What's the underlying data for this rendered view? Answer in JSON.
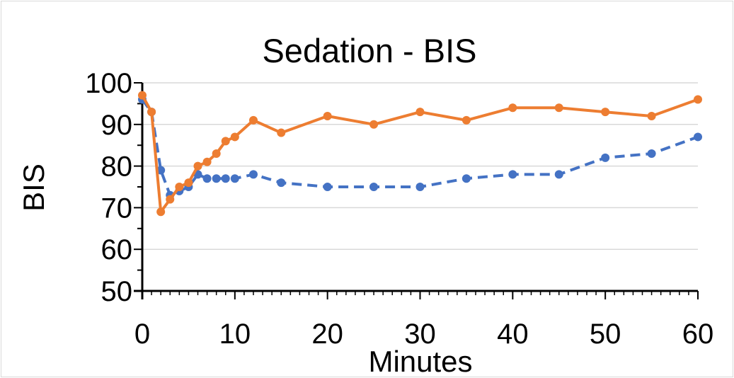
{
  "chart_data": {
    "type": "line",
    "title": "Sedation - BIS",
    "xlabel": "Minutes",
    "ylabel": "BIS",
    "xlim": [
      0,
      60
    ],
    "ylim": [
      50,
      100
    ],
    "x_ticks": [
      0,
      10,
      20,
      30,
      40,
      50,
      60
    ],
    "y_ticks": [
      50,
      60,
      70,
      80,
      90,
      100
    ],
    "grid": "horizontal",
    "legend": "none",
    "series": [
      {
        "color": "#4472C4",
        "line_style": "dashed",
        "x": [
          0,
          1,
          2,
          3,
          4,
          5,
          6,
          7,
          8,
          9,
          10,
          12,
          15,
          20,
          25,
          30,
          35,
          40,
          45,
          50,
          55,
          60
        ],
        "y": [
          96,
          93,
          79,
          73,
          74,
          75,
          78,
          77,
          77,
          77,
          77,
          78,
          76,
          75,
          75,
          75,
          77,
          78,
          78,
          82,
          83,
          87
        ]
      },
      {
        "color": "#ED7D31",
        "line_style": "solid",
        "x": [
          0,
          1,
          2,
          3,
          4,
          5,
          6,
          7,
          8,
          9,
          10,
          12,
          15,
          20,
          25,
          30,
          35,
          40,
          45,
          50,
          55,
          60
        ],
        "y": [
          97,
          93,
          69,
          72,
          75,
          76,
          80,
          81,
          83,
          86,
          87,
          91,
          88,
          92,
          90,
          93,
          91,
          94,
          94,
          93,
          92,
          96
        ]
      }
    ]
  }
}
